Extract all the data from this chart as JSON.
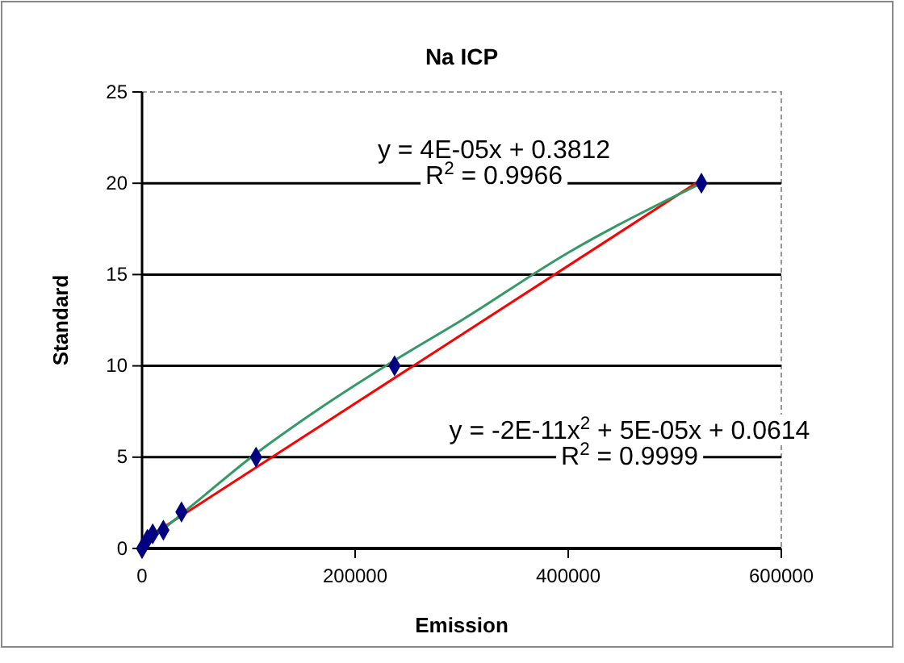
{
  "chart_data": {
    "type": "scatter",
    "title": "Na ICP",
    "xlabel": "Emission",
    "ylabel": "Standard",
    "xlim": [
      0,
      600000
    ],
    "xticks": [
      0,
      200000,
      400000,
      600000
    ],
    "ylim": [
      0,
      25
    ],
    "yticks": [
      0,
      5,
      10,
      15,
      20,
      25
    ],
    "grid": "y",
    "series": [
      {
        "color": "#000080",
        "marker": "diamond",
        "x": [
          0,
          5000,
          10000,
          20000,
          37000,
          107000,
          237000,
          525000
        ],
        "values": [
          0,
          0.5,
          0.8,
          1,
          2,
          5,
          10,
          20
        ]
      },
      {
        "type": "line",
        "color": "#ff0000",
        "x": [
          0,
          525000
        ],
        "values": [
          0.4,
          20.2
        ]
      },
      {
        "type": "line",
        "color": "#339966",
        "x": [
          0,
          50000,
          107000,
          150000,
          237000,
          300000,
          400000,
          525000
        ],
        "values": [
          0.1,
          2.5,
          5.2,
          7,
          10.3,
          12.5,
          16.2,
          20
        ]
      }
    ],
    "annotations": [
      "y = 4E-05x + 0.3812",
      "R$^{2}$ = 0.9966",
      "y = -2E-11x$^{2}$ + 5E-05x + 0.0614",
      "R$^{2}$ = 0.9999"
    ]
  }
}
